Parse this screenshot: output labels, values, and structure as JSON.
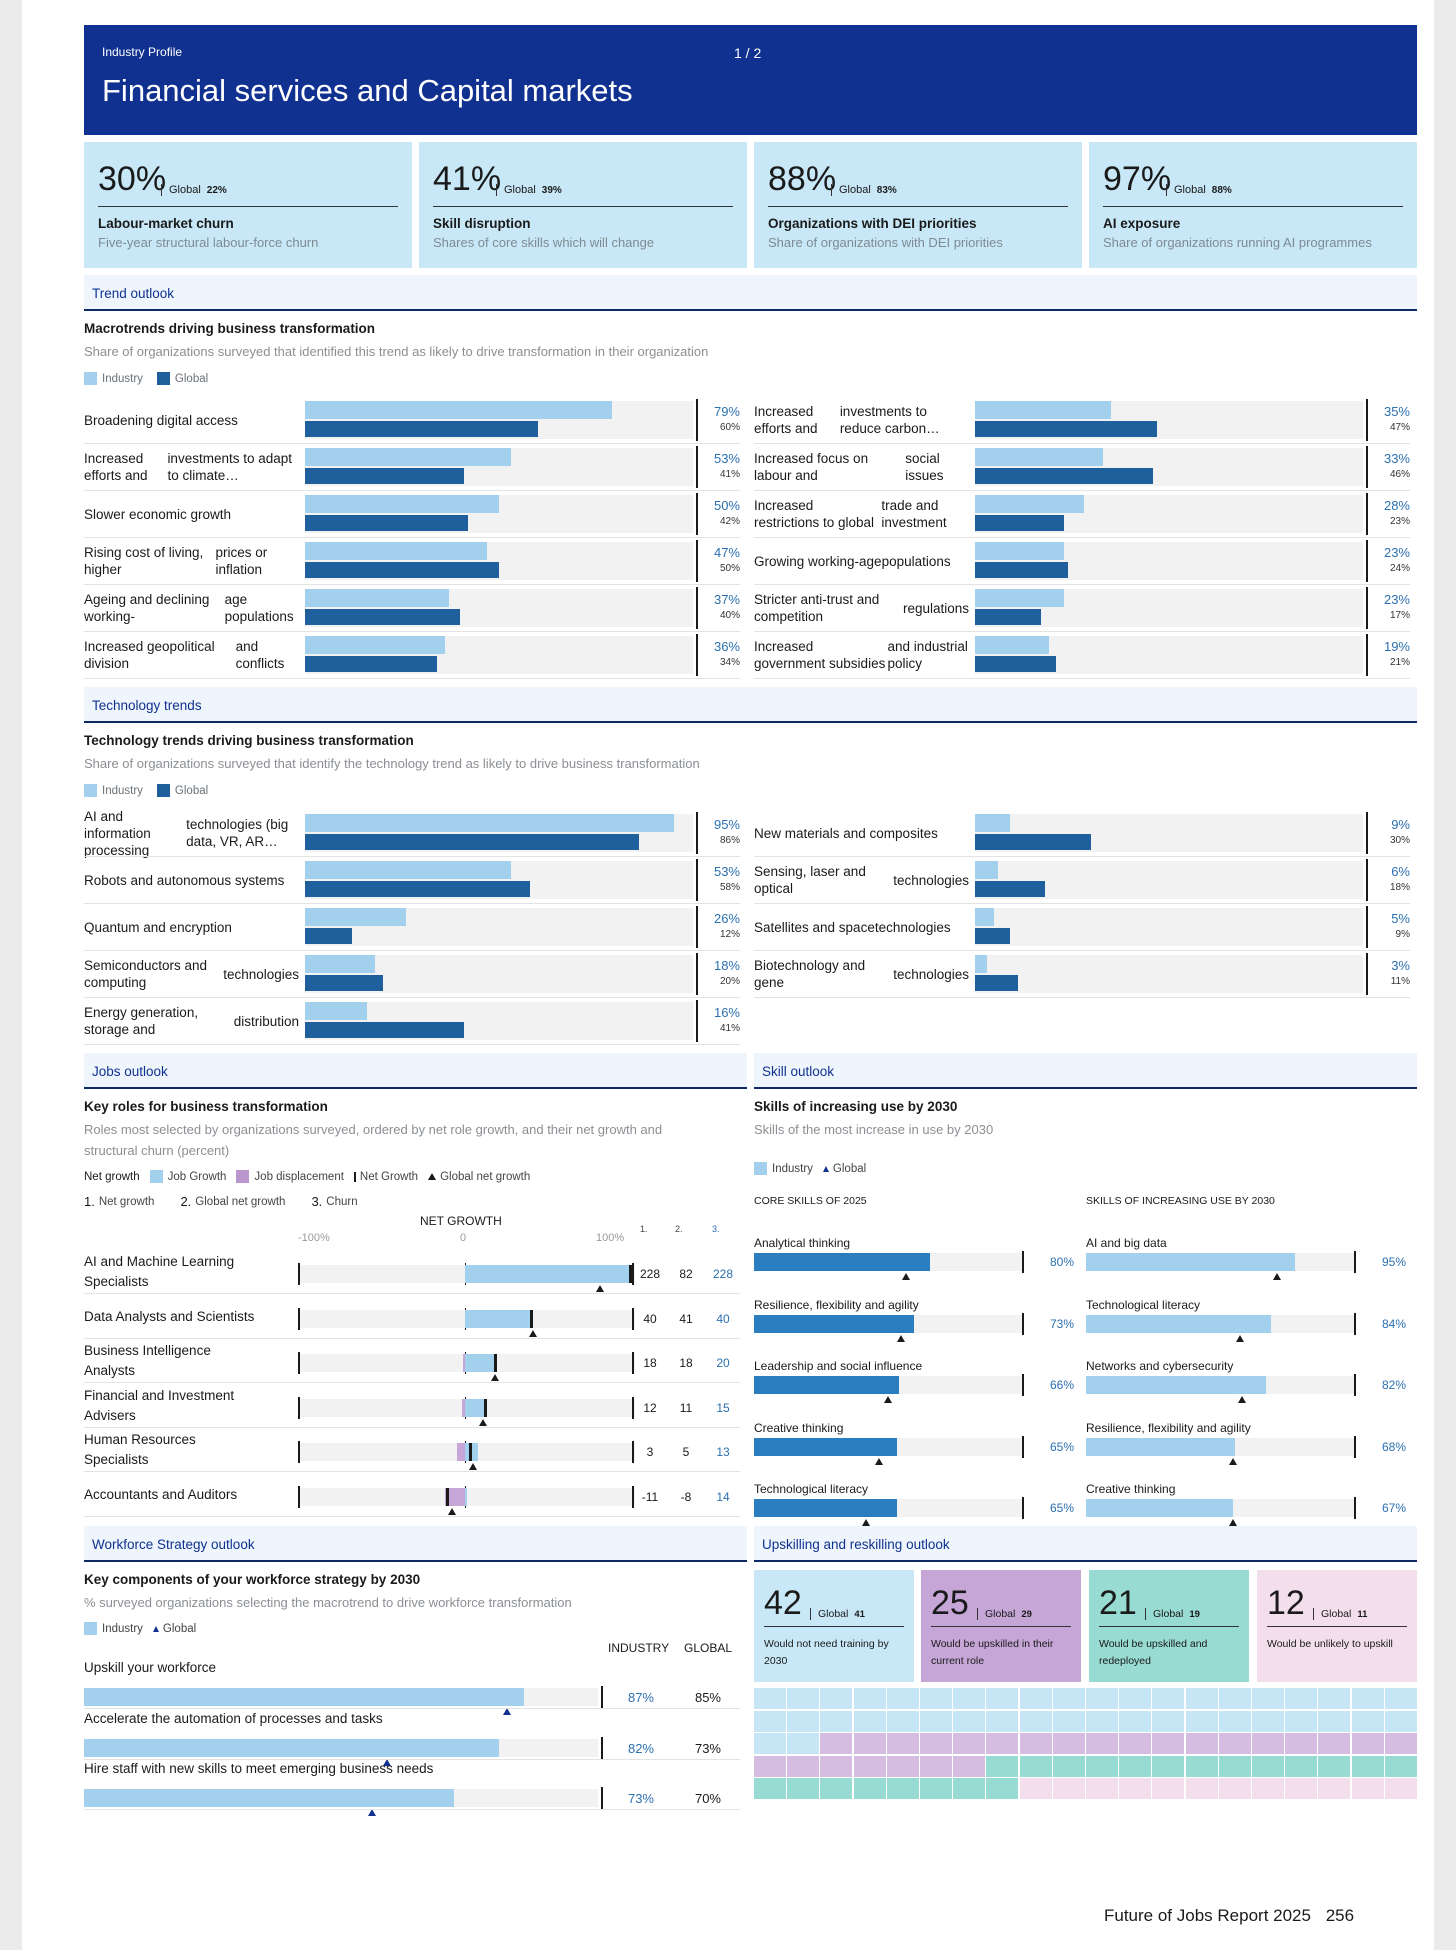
{
  "header": {
    "pre_title": "Industry Profile",
    "page_indicator": "1 / 2",
    "title": "Financial services and Capital markets"
  },
  "colors": {
    "navy": "#10318f",
    "light_blue": "#a3d0ec",
    "dark_blue": "#1f5f9c",
    "skill_blue": "#2a7dbf",
    "purple": "#c5a6d6",
    "teal": "#97dbd2",
    "pink": "#f3dfeb",
    "card_bg": "#c8e8f7"
  },
  "kpis": [
    {
      "value": "30%",
      "global_label": "Global",
      "global_value": "22%",
      "name": "Labour-market churn",
      "desc": "Five-year structural labour-force churn"
    },
    {
      "value": "41%",
      "global_label": "Global",
      "global_value": "39%",
      "name": "Skill disruption",
      "desc": "Shares of core skills which will change"
    },
    {
      "value": "88%",
      "global_label": "Global",
      "global_value": "83%",
      "name": "Organizations with DEI priorities",
      "desc": "Share of organizations with DEI priorities"
    },
    {
      "value": "97%",
      "global_label": "Global",
      "global_value": "88%",
      "name": "AI exposure",
      "desc": "Share of organizations running AI programmes"
    }
  ],
  "trend": {
    "section": "Trend outlook",
    "title": "Macrotrends driving business transformation",
    "subtitle": "Share of organizations surveyed that identified this trend as likely to drive transformation in their organization",
    "legend": {
      "industry": "Industry",
      "global": "Global"
    },
    "items": [
      {
        "label": [
          "Broadening digital access"
        ],
        "industry": 79,
        "global": 60,
        "ip": "79%",
        "gp": "60%"
      },
      {
        "label": [
          "Increased efforts and",
          "investments to adapt to climate…"
        ],
        "industry": 53,
        "global": 41,
        "ip": "53%",
        "gp": "41%"
      },
      {
        "label": [
          "Slower economic growth"
        ],
        "industry": 50,
        "global": 42,
        "ip": "50%",
        "gp": "42%"
      },
      {
        "label": [
          "Rising cost of living, higher",
          "prices or inflation"
        ],
        "industry": 47,
        "global": 50,
        "ip": "47%",
        "gp": "50%"
      },
      {
        "label": [
          "Ageing and declining working-",
          "age populations"
        ],
        "industry": 37,
        "global": 40,
        "ip": "37%",
        "gp": "40%"
      },
      {
        "label": [
          "Increased geopolitical division",
          "and conflicts"
        ],
        "industry": 36,
        "global": 34,
        "ip": "36%",
        "gp": "34%"
      },
      {
        "label": [
          "Increased efforts and",
          "investments to reduce carbon…"
        ],
        "industry": 35,
        "global": 47,
        "ip": "35%",
        "gp": "47%"
      },
      {
        "label": [
          "Increased focus on labour and",
          "social issues"
        ],
        "industry": 33,
        "global": 46,
        "ip": "33%",
        "gp": "46%"
      },
      {
        "label": [
          "Increased restrictions to global",
          "trade and investment"
        ],
        "industry": 28,
        "global": 23,
        "ip": "28%",
        "gp": "23%"
      },
      {
        "label": [
          "Growing working-age",
          "populations"
        ],
        "industry": 23,
        "global": 24,
        "ip": "23%",
        "gp": "24%"
      },
      {
        "label": [
          "Stricter anti-trust and competition",
          "regulations"
        ],
        "industry": 23,
        "global": 17,
        "ip": "23%",
        "gp": "17%"
      },
      {
        "label": [
          "Increased government subsidies",
          "and industrial policy"
        ],
        "industry": 19,
        "global": 21,
        "ip": "19%",
        "gp": "21%"
      }
    ]
  },
  "tech": {
    "section": "Technology trends",
    "title": "Technology trends driving business transformation",
    "subtitle": "Share of organizations surveyed that identify the technology trend as likely to drive business transformation",
    "legend": {
      "industry": "Industry",
      "global": "Global"
    },
    "items": [
      {
        "label": [
          "AI and information processing",
          "technologies (big data, VR, AR…"
        ],
        "industry": 95,
        "global": 86,
        "ip": "95%",
        "gp": "86%"
      },
      {
        "label": [
          "Robots and autonomous systems"
        ],
        "industry": 53,
        "global": 58,
        "ip": "53%",
        "gp": "58%"
      },
      {
        "label": [
          "Quantum and encryption"
        ],
        "industry": 26,
        "global": 12,
        "ip": "26%",
        "gp": "12%"
      },
      {
        "label": [
          "Semiconductors and computing",
          "technologies"
        ],
        "industry": 18,
        "global": 20,
        "ip": "18%",
        "gp": "20%"
      },
      {
        "label": [
          "Energy generation, storage and",
          "distribution"
        ],
        "industry": 16,
        "global": 41,
        "ip": "16%",
        "gp": "41%"
      },
      {
        "label": [
          "New materials and composites"
        ],
        "industry": 9,
        "global": 30,
        "ip": "9%",
        "gp": "30%"
      },
      {
        "label": [
          "Sensing, laser and optical",
          "technologies"
        ],
        "industry": 6,
        "global": 18,
        "ip": "6%",
        "gp": "18%"
      },
      {
        "label": [
          "Satellites and space",
          "technologies"
        ],
        "industry": 5,
        "global": 9,
        "ip": "5%",
        "gp": "9%"
      },
      {
        "label": [
          "Biotechnology and gene",
          "technologies"
        ],
        "industry": 3,
        "global": 11,
        "ip": "3%",
        "gp": "11%"
      }
    ]
  },
  "jobs": {
    "section": "Jobs outlook",
    "title": "Key roles for business transformation",
    "subtitle": [
      "Roles most selected by organizations surveyed, ordered by net role growth, and their net growth and",
      "structural churn (percent)"
    ],
    "legend": {
      "net_growth": "Net growth",
      "job_growth": "Job Growth",
      "job_displacement": "Job displacement",
      "net_growth_marker": "Net Growth",
      "global_net_growth": "Global net growth"
    },
    "columns": {
      "c1n": "1.",
      "c1": "Net growth",
      "c2n": "2.",
      "c2": "Global net growth",
      "c3n": "3.",
      "c3": "Churn"
    },
    "axis": {
      "title": "NET GROWTH",
      "min": "-100%",
      "mid": "0",
      "max": "100%",
      "h1": "1.",
      "h2": "2.",
      "h3": "3."
    },
    "roles": [
      {
        "label": "AI and Machine Learning Specialists",
        "growth": 228,
        "displacement": 0,
        "net": 228,
        "global": 82,
        "churn": 228,
        "n1": "228",
        "n2": "82",
        "n3": "228"
      },
      {
        "label": "Data Analysts and Scientists",
        "growth": 40,
        "displacement": 0,
        "net": 40,
        "global": 41,
        "churn": 40,
        "n1": "40",
        "n2": "41",
        "n3": "40"
      },
      {
        "label": "Business Intelligence Analysts",
        "growth": 19,
        "displacement": 1,
        "net": 18,
        "global": 18,
        "churn": 20,
        "n1": "18",
        "n2": "18",
        "n3": "20"
      },
      {
        "label": "Financial and Investment Advisers",
        "growth": 13,
        "displacement": 2,
        "net": 12,
        "global": 11,
        "churn": 15,
        "n1": "12",
        "n2": "11",
        "n3": "15"
      },
      {
        "label": "Human Resources Specialists",
        "growth": 8,
        "displacement": 5,
        "net": 3,
        "global": 5,
        "churn": 13,
        "n1": "3",
        "n2": "5",
        "n3": "13"
      },
      {
        "label": "Accountants and Auditors",
        "growth": 1,
        "displacement": 12,
        "net": -11,
        "global": -8,
        "churn": 14,
        "n1": "-11",
        "n2": "-8",
        "n3": "14"
      }
    ]
  },
  "skills": {
    "section": "Skill outlook",
    "title": "Skills of increasing use by 2030",
    "subtitle": "Skills of the most increase in use by 2030",
    "legend": {
      "industry": "Industry",
      "global": "Global"
    },
    "core_header": "CORE SKILLS OF 2025",
    "inc_header": "SKILLS OF INCREASING USE BY 2030",
    "core": [
      {
        "label": "Analytical thinking",
        "value": 80,
        "pct": "80%",
        "global": 69
      },
      {
        "label": "Resilience, flexibility and agility",
        "value": 73,
        "pct": "73%",
        "global": 67
      },
      {
        "label": "Leadership and social influence",
        "value": 66,
        "pct": "66%",
        "global": 61
      },
      {
        "label": "Creative thinking",
        "value": 65,
        "pct": "65%",
        "global": 57
      },
      {
        "label": "Technological literacy",
        "value": 65,
        "pct": "65%",
        "global": 51
      }
    ],
    "increasing": [
      {
        "label": "AI and big data",
        "value": 95,
        "pct": "95%",
        "global": 87
      },
      {
        "label": "Technological literacy",
        "value": 84,
        "pct": "84%",
        "global": 70
      },
      {
        "label": "Networks and cybersecurity",
        "value": 82,
        "pct": "82%",
        "global": 71
      },
      {
        "label": "Resilience, flexibility and agility",
        "value": 68,
        "pct": "68%",
        "global": 67
      },
      {
        "label": "Creative thinking",
        "value": 67,
        "pct": "67%",
        "global": 67
      }
    ]
  },
  "workforce": {
    "section": "Workforce Strategy outlook",
    "title": "Key components of your workforce strategy by 2030",
    "subtitle": "% surveyed organizations selecting the macrotrend to drive workforce transformation",
    "legend": {
      "industry": "Industry",
      "global": "Global"
    },
    "col_industry": "INDUSTRY",
    "col_global": "GLOBAL",
    "items": [
      {
        "label": "Upskill your workforce",
        "industry": 87,
        "global": 85,
        "ip": "87%",
        "gp": "85%"
      },
      {
        "label": "Accelerate the automation of processes and tasks",
        "industry": 82,
        "global": 73,
        "ip": "82%",
        "gp": "73%"
      },
      {
        "label": "Hire staff with new skills to meet emerging business needs",
        "industry": 73,
        "global": 70,
        "ip": "73%",
        "gp": "70%"
      }
    ]
  },
  "upskilling": {
    "section": "Upskilling and reskilling outlook",
    "cards": [
      {
        "value": "42",
        "global_label": "Global",
        "global_value": "41",
        "desc": "Would not need training by 2030",
        "color": "#c8e8f7",
        "n": 42
      },
      {
        "value": "25",
        "global_label": "Global",
        "global_value": "29",
        "desc": "Would be upskilled in their current role",
        "color": "#c5a6d6",
        "n": 25
      },
      {
        "value": "21",
        "global_label": "Global",
        "global_value": "19",
        "desc": "Would be upskilled and redeployed",
        "color": "#97dbd2",
        "n": 21
      },
      {
        "value": "12",
        "global_label": "Global",
        "global_value": "11",
        "desc": "Would be unlikely to upskill",
        "color": "#f3dfeb",
        "n": 12
      }
    ]
  },
  "footer": {
    "report": "Future of Jobs Report 2025",
    "page": "256"
  }
}
